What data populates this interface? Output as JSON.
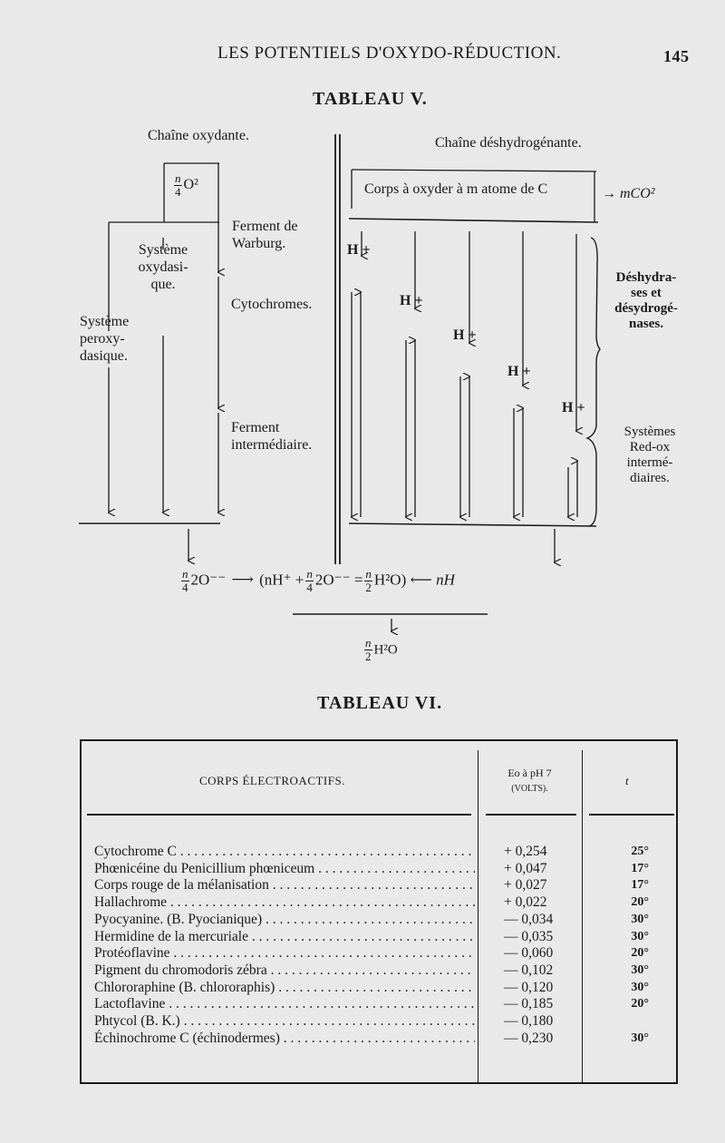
{
  "page": {
    "running_head": "LES POTENTIELS D'OXYDO-RÉDUCTION.",
    "page_number": "145"
  },
  "tableau5": {
    "title": "TABLEAU V.",
    "left_heading": "Chaîne oxydante.",
    "right_heading": "Chaîne déshydrogénante.",
    "oxygen_num": "n",
    "oxygen_den": "4",
    "oxygen_label": "O²",
    "systeme_oxydasique": [
      "Système",
      "oxydasi-",
      "que."
    ],
    "systeme_peroxydasique": [
      "Système",
      "peroxy-",
      "dasique."
    ],
    "ferment_warburg": [
      "Ferment de",
      "Warburg."
    ],
    "cytochromes": "Cytochromes.",
    "ferment_intermediaire": [
      "Ferment",
      "intermédiaire."
    ],
    "corps_box": "Corps à oxyder à m atome de C",
    "co2": "→ mCO²",
    "hplus": [
      "H +",
      "H +",
      "H +",
      "H +",
      "H +"
    ],
    "deshydrases": [
      "Déshydra-",
      "ses et",
      "désydrogé-",
      "nases."
    ],
    "redox": [
      "Systèmes",
      "Red-ox",
      "intermé-",
      "diaires."
    ],
    "eq_left": "2O⁻⁻",
    "eq_arrow": "⟶",
    "eq_middle_open": "(nH⁺ +",
    "eq_middle_mid": "2O⁻⁻ =",
    "eq_middle_close": "H²O)",
    "eq_right": "⟵ nH",
    "frac_n": "n",
    "frac_4": "4",
    "frac_2": "2",
    "result": "H²O"
  },
  "tableau6": {
    "title": "TABLEAU VI.",
    "columns": [
      "CORPS ÉLECTROACTIFS.",
      "Eo à pH 7",
      "(VOLTS).",
      "t"
    ],
    "rows": [
      {
        "name": "Cytochrome C",
        "eo": "+ 0,254",
        "t": "25°"
      },
      {
        "name": "Phœnicéine du Penicillium phœniceum",
        "eo": "+ 0,047",
        "t": "17°"
      },
      {
        "name": "Corps rouge de la mélanisation",
        "eo": "+ 0,027",
        "t": "17°"
      },
      {
        "name": "Hallachrome",
        "eo": "+ 0,022",
        "t": "20°"
      },
      {
        "name": "Pyocyanine. (B. Pyocianique)",
        "eo": "— 0,034",
        "t": "30°"
      },
      {
        "name": "Hermidine de la mercuriale",
        "eo": "— 0,035",
        "t": "30°"
      },
      {
        "name": "Protéoflavine",
        "eo": "— 0,060",
        "t": "20°"
      },
      {
        "name": "Pigment du chromodoris zébra",
        "eo": "— 0,102",
        "t": "30°"
      },
      {
        "name": "Chlororaphine (B. chlororaphis)",
        "eo": "— 0,120",
        "t": "30°"
      },
      {
        "name": "Lactoflavine",
        "eo": "— 0,185",
        "t": "20°"
      },
      {
        "name": "Phtycol (B. K.)",
        "eo": "— 0,180",
        "t": ""
      },
      {
        "name": "Échinochrome C (échinodermes)",
        "eo": "— 0,230",
        "t": "30°"
      }
    ]
  }
}
